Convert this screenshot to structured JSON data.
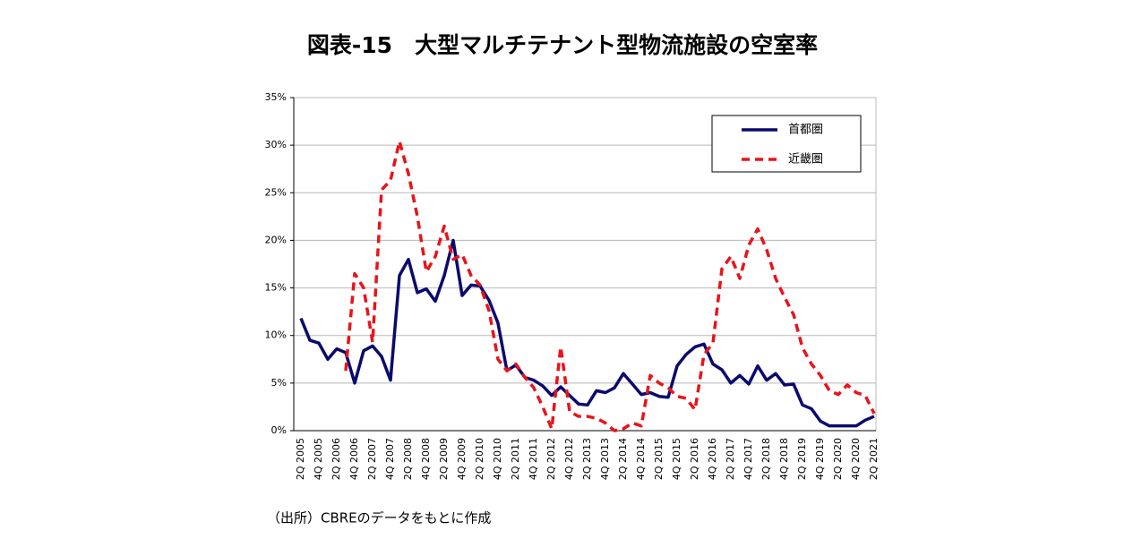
{
  "chart_data": {
    "type": "line",
    "title": "図表-15　大型マルチテナント型物流施設の空室率",
    "note": "（出所）CBREのデータをもとに作成",
    "categories": [
      "2Q 2005",
      null,
      "4Q 2005",
      null,
      "2Q 2006",
      null,
      "4Q 2006",
      null,
      "2Q 2007",
      null,
      "4Q 2007",
      null,
      "2Q 2008",
      null,
      "4Q 2008",
      null,
      "2Q 2009",
      null,
      "4Q 2009",
      null,
      "2Q 2010",
      null,
      "4Q 2010",
      null,
      "2Q 2011",
      null,
      "4Q 2011",
      null,
      "2Q 2012",
      null,
      "4Q 2012",
      null,
      "2Q 2013",
      null,
      "4Q 2013",
      null,
      "2Q 2014",
      null,
      "4Q 2014",
      null,
      "2Q 2015",
      null,
      "4Q 2015",
      null,
      "2Q 2016",
      null,
      "4Q 2016",
      null,
      "2Q 2017",
      null,
      "4Q 2017",
      null,
      "2Q 2018",
      null,
      "4Q 2018",
      null,
      "2Q 2019",
      null,
      "4Q 2019",
      null,
      "2Q 2020",
      null,
      "4Q 2020",
      null,
      "2Q 2021"
    ],
    "series": [
      {
        "name": "首都圏",
        "color": "#0a0a6e",
        "dash": false,
        "values": [
          11.8,
          9.5,
          9.2,
          7.5,
          8.6,
          8.2,
          5.0,
          8.4,
          8.9,
          7.8,
          5.3,
          16.3,
          18.0,
          14.5,
          14.9,
          13.6,
          16.3,
          20.0,
          14.2,
          15.3,
          15.2,
          13.7,
          11.3,
          6.3,
          6.9,
          5.6,
          5.3,
          4.7,
          3.7,
          4.6,
          3.7,
          2.8,
          2.7,
          4.2,
          4.0,
          4.5,
          6.0,
          4.9,
          3.8,
          4.0,
          3.6,
          3.5,
          6.8,
          8.0,
          8.8,
          9.1,
          7.0,
          6.4,
          5.0,
          5.8,
          4.9,
          6.8,
          5.3,
          6.0,
          4.8,
          4.9,
          2.7,
          2.3,
          1.0,
          0.5,
          0.5,
          0.5,
          0.5,
          1.1,
          1.5
        ]
      },
      {
        "name": "近畿圏",
        "color": "#e8141a",
        "dash": true,
        "values": [
          null,
          null,
          null,
          null,
          null,
          6.3,
          16.5,
          15.0,
          9.3,
          25.3,
          26.3,
          30.4,
          27.0,
          22.5,
          16.7,
          18.3,
          21.5,
          18.0,
          18.5,
          16.3,
          15.3,
          12.6,
          7.5,
          6.3,
          7.0,
          5.6,
          4.5,
          2.5,
          0.2,
          8.8,
          2.0,
          1.5,
          1.5,
          1.3,
          0.8,
          0.0,
          0.2,
          0.8,
          0.5,
          5.8,
          5.0,
          4.5,
          3.6,
          3.4,
          2.2,
          8.0,
          9.2,
          17.0,
          18.3,
          16.0,
          19.5,
          21.2,
          19.0,
          16.0,
          14.0,
          12.2,
          8.7,
          7.0,
          5.8,
          4.2,
          3.8,
          4.8,
          4.0,
          3.7,
          1.8
        ]
      }
    ],
    "ylim": [
      0,
      35
    ],
    "yticks": [
      {
        "value": 0,
        "label": "0%"
      },
      {
        "value": 5,
        "label": "5%"
      },
      {
        "value": 10,
        "label": "10%"
      },
      {
        "value": 15,
        "label": "15%"
      },
      {
        "value": 20,
        "label": "20%"
      },
      {
        "value": 25,
        "label": "25%"
      },
      {
        "value": 30,
        "label": "30%"
      },
      {
        "value": 35,
        "label": "35%"
      }
    ],
    "grid": true,
    "legend": "upper right"
  }
}
